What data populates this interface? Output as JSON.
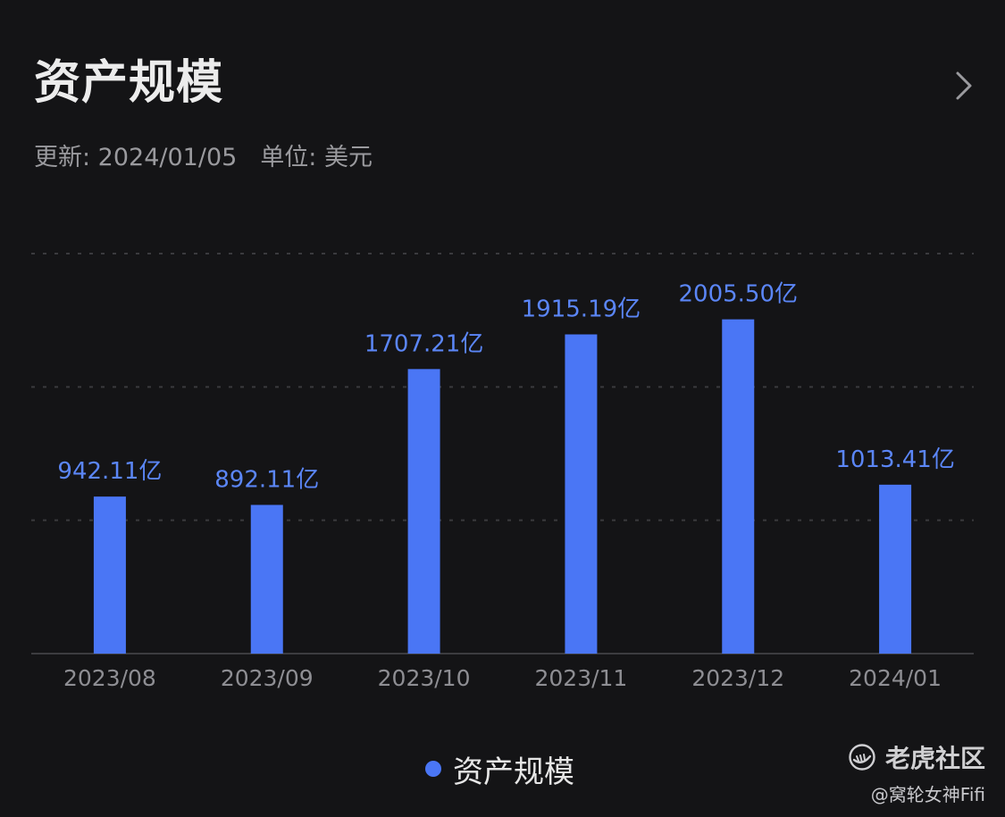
{
  "header": {
    "title": "资产规模",
    "update_text": "更新: 2024/01/05",
    "unit_text": "单位: 美元"
  },
  "icons": {
    "more": "chevron-right-icon",
    "brand_logo": "tiger-logo-icon"
  },
  "chart_data": {
    "type": "bar",
    "categories": [
      "2023/08",
      "2023/09",
      "2023/10",
      "2023/11",
      "2023/12",
      "2024/01"
    ],
    "series": [
      {
        "name": "资产规模",
        "values": [
          942.11,
          892.11,
          1707.21,
          1915.19,
          2005.5,
          1013.41
        ],
        "labels": [
          "942.11亿",
          "892.11亿",
          "1707.21亿",
          "1915.19亿",
          "2005.50亿",
          "1013.41亿"
        ]
      }
    ],
    "ylim": [
      0,
      2400
    ],
    "grid": true,
    "legend": "bottom-center",
    "xlabel": "",
    "ylabel": ""
  },
  "legend": {
    "label": "资产规模"
  },
  "watermark": {
    "brand": "老虎社区",
    "user": "@窝轮女神Fifi"
  },
  "colors": {
    "background": "#141416",
    "bar": "#4a76f5",
    "label": "#5b86f7",
    "grid": "#3a3a3e",
    "axis_text": "#8e8e93"
  }
}
